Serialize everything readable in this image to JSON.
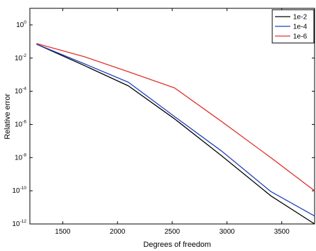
{
  "chart_data": {
    "type": "line",
    "title": "",
    "xlabel": "Degrees of freedom",
    "ylabel": "Relative error",
    "xlim": [
      1200,
      3800
    ],
    "ylim_log10": [
      -12,
      1
    ],
    "y_scale": "log",
    "x_ticks": [
      1500,
      2000,
      2500,
      3000,
      3500
    ],
    "y_ticks": [
      {
        "base": "10",
        "exp": "0",
        "value": 1
      },
      {
        "base": "10",
        "exp": "-2",
        "value": 0.01
      },
      {
        "base": "10",
        "exp": "-4",
        "value": 0.0001
      },
      {
        "base": "10",
        "exp": "-6",
        "value": 1e-06
      },
      {
        "base": "10",
        "exp": "-8",
        "value": 1e-08
      },
      {
        "base": "10",
        "exp": "-10",
        "value": 1e-10
      },
      {
        "base": "10",
        "exp": "-12",
        "value": 1e-12
      }
    ],
    "grid": false,
    "legend_position": "top-right",
    "series": [
      {
        "name": "1e-2",
        "color": "#000000",
        "x": [
          1260,
          1700,
          2100,
          2520,
          2950,
          3400,
          3800
        ],
        "y": [
          0.07,
          0.0035,
          0.00021,
          2.2e-06,
          1.3e-08,
          5e-11,
          1e-12
        ]
      },
      {
        "name": "1e-4",
        "color": "#1f3fbf",
        "x": [
          1260,
          1700,
          2100,
          2520,
          2950,
          3400,
          3800
        ],
        "y": [
          0.07,
          0.0045,
          0.00035,
          3e-06,
          2.5e-08,
          9e-11,
          3e-12
        ]
      },
      {
        "name": "1e-6",
        "color": "#e0302a",
        "x": [
          1260,
          1700,
          2100,
          2520,
          2950,
          3400,
          3800
        ],
        "y": [
          0.075,
          0.012,
          0.0015,
          0.00016,
          1.5e-06,
          1e-08,
          1e-10
        ]
      }
    ]
  }
}
